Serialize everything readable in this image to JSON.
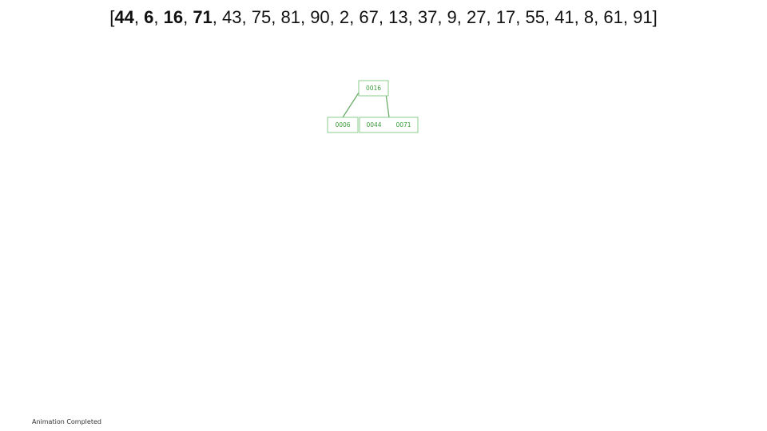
{
  "title_sequence": {
    "open_bracket": "[",
    "close_bracket": "]",
    "inserted": [
      "44",
      "6",
      "16",
      "71"
    ],
    "pending": [
      "43",
      "75",
      "81",
      "90",
      "2",
      "67",
      "13",
      "37",
      "9",
      "27",
      "17",
      "55",
      "41",
      "8",
      "61",
      "91"
    ]
  },
  "tree": {
    "root": {
      "keys": [
        "0016"
      ]
    },
    "children": [
      {
        "keys": [
          "0006"
        ]
      },
      {
        "keys": [
          "0044",
          "0071"
        ]
      }
    ]
  },
  "status": {
    "text": "Animation Completed"
  },
  "colors": {
    "node_border": "#88cc88",
    "node_text": "#3a9a3a",
    "edge": "#6aaa6a"
  }
}
